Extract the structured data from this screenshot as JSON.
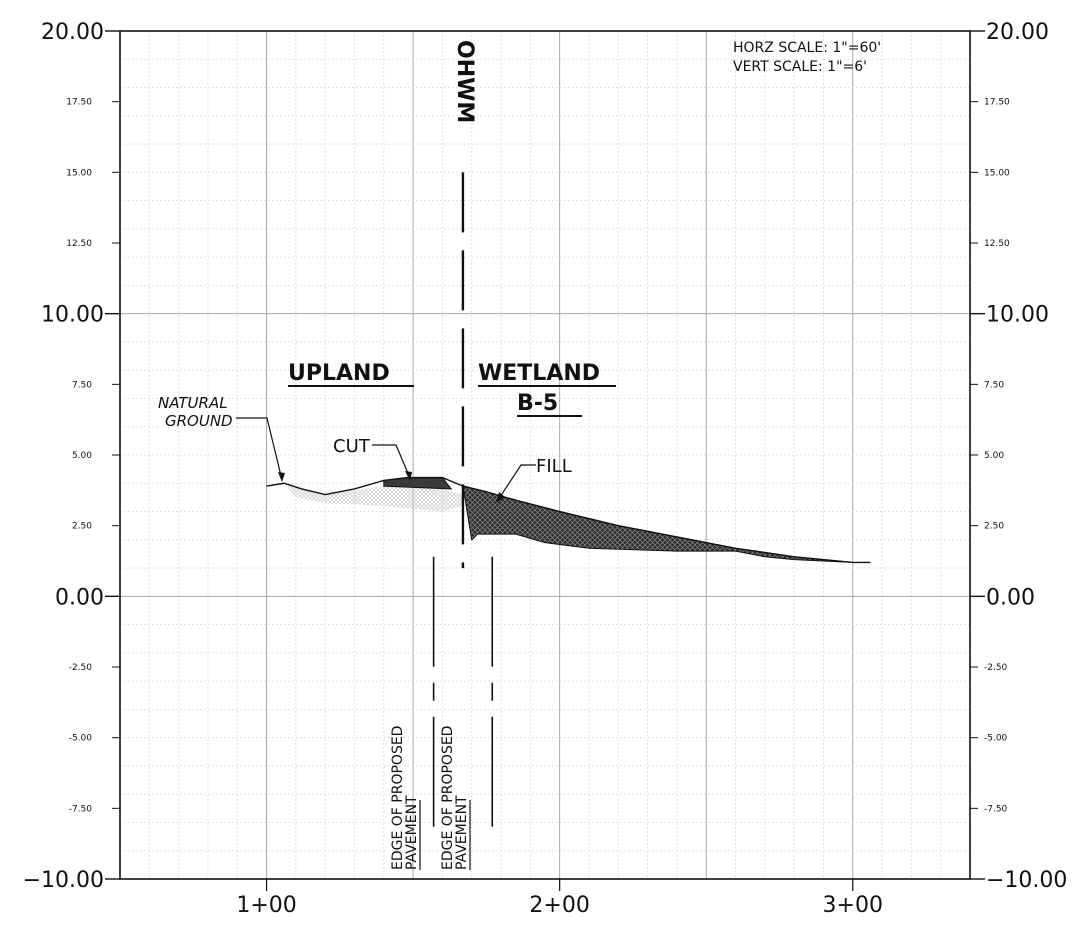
{
  "scale_note": {
    "horz": "HORZ SCALE:  1\"=60'",
    "vert": "VERT SCALE:   1\"=6'"
  },
  "labels": {
    "ohwm": "OHWM",
    "upland": "UPLAND",
    "wetland_line1": "WETLAND",
    "wetland_line2": "B-5",
    "natural_ground_line1": "NATURAL",
    "natural_ground_line2": "GROUND",
    "cut": "CUT",
    "fill": "FILL",
    "edge1_line1": "EDGE OF PROPOSED",
    "edge1_line2": "PAVEMENT",
    "edge2_line1": "EDGE OF PROPOSED",
    "edge2_line2": "PAVEMENT"
  },
  "chart_data": {
    "type": "cross-section",
    "xunit": "station (ft)",
    "yunit": "elevation (ft)",
    "xlim": [
      50,
      340
    ],
    "ylim": [
      -10,
      20
    ],
    "y_ticks_major": [
      {
        "value": 20,
        "label": "20.00"
      },
      {
        "value": 10,
        "label": "10.00"
      },
      {
        "value": 0,
        "label": "0.00"
      },
      {
        "value": -10,
        "label": "-10.00"
      }
    ],
    "y_ticks_minor": [
      {
        "value": 17.5,
        "label": "17.50"
      },
      {
        "value": 15,
        "label": "15.00"
      },
      {
        "value": 12.5,
        "label": "12.50"
      },
      {
        "value": 7.5,
        "label": "7.50"
      },
      {
        "value": 5,
        "label": "5.00"
      },
      {
        "value": 2.5,
        "label": "2.50"
      },
      {
        "value": -2.5,
        "label": "-2.50"
      },
      {
        "value": -5,
        "label": "-5.00"
      },
      {
        "value": -7.5,
        "label": "-7.50"
      }
    ],
    "x_ticks": [
      {
        "value": 100,
        "label": "1+00"
      },
      {
        "value": 200,
        "label": "2+00"
      },
      {
        "value": 300,
        "label": "3+00"
      }
    ],
    "ohwm_station": 167,
    "pavement_edges": [
      157,
      177
    ],
    "natural_ground": [
      [
        100,
        3.9
      ],
      [
        106,
        4.0
      ],
      [
        112,
        3.8
      ],
      [
        120,
        3.6
      ],
      [
        130,
        3.8
      ],
      [
        140,
        4.1
      ],
      [
        148,
        4.2
      ],
      [
        160,
        4.2
      ],
      [
        167,
        3.9
      ],
      [
        175,
        3.7
      ],
      [
        185,
        3.4
      ],
      [
        200,
        3.0
      ],
      [
        220,
        2.5
      ],
      [
        240,
        2.1
      ],
      [
        260,
        1.7
      ],
      [
        280,
        1.4
      ],
      [
        300,
        1.2
      ],
      [
        306,
        1.2
      ]
    ],
    "cut_area": [
      [
        140,
        4.1
      ],
      [
        148,
        4.2
      ],
      [
        160,
        4.2
      ],
      [
        163,
        3.8
      ],
      [
        140,
        3.9
      ]
    ],
    "fill_area": [
      [
        167,
        3.9
      ],
      [
        175,
        3.7
      ],
      [
        185,
        3.4
      ],
      [
        200,
        3.0
      ],
      [
        220,
        2.5
      ],
      [
        240,
        2.1
      ],
      [
        260,
        1.7
      ],
      [
        280,
        1.4
      ],
      [
        300,
        1.2
      ],
      [
        280,
        1.3
      ],
      [
        270,
        1.4
      ],
      [
        260,
        1.6
      ],
      [
        240,
        1.6
      ],
      [
        210,
        1.7
      ],
      [
        195,
        1.9
      ],
      [
        185,
        2.2
      ],
      [
        172,
        2.2
      ],
      [
        170,
        2.0
      ]
    ]
  }
}
